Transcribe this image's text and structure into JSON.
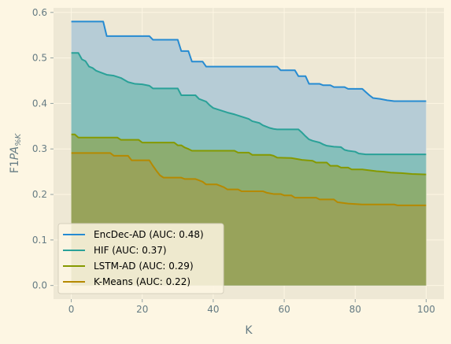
{
  "chart_data": {
    "type": "area",
    "xlabel": "K",
    "ylabel": "F1PA%K",
    "xlim": [
      -5,
      105
    ],
    "ylim": [
      -0.03,
      0.61
    ],
    "xticks": [
      0,
      20,
      40,
      60,
      80,
      100
    ],
    "xtick_labels": [
      "0",
      "20",
      "40",
      "60",
      "80",
      "100"
    ],
    "yticks": [
      0.0,
      0.1,
      0.2,
      0.3,
      0.4,
      0.5,
      0.6
    ],
    "ytick_labels": [
      "0.0",
      "0.1",
      "0.2",
      "0.3",
      "0.4",
      "0.5",
      "0.6"
    ],
    "grid": true,
    "legend_position": "lower-left",
    "series": [
      {
        "name": "EncDec-AD (AUC: 0.48)",
        "color": "#268bd2",
        "fill": "#b6ccd6",
        "points": [
          [
            0,
            0.58
          ],
          [
            9,
            0.58
          ],
          [
            10,
            0.548
          ],
          [
            22,
            0.548
          ],
          [
            23,
            0.54
          ],
          [
            30,
            0.54
          ],
          [
            31,
            0.515
          ],
          [
            33,
            0.515
          ],
          [
            34,
            0.492
          ],
          [
            37,
            0.492
          ],
          [
            38,
            0.481
          ],
          [
            58,
            0.481
          ],
          [
            59,
            0.473
          ],
          [
            63,
            0.473
          ],
          [
            64,
            0.46
          ],
          [
            66,
            0.46
          ],
          [
            67,
            0.443
          ],
          [
            70,
            0.443
          ],
          [
            71,
            0.44
          ],
          [
            73,
            0.44
          ],
          [
            74,
            0.436
          ],
          [
            77,
            0.436
          ],
          [
            78,
            0.432
          ],
          [
            82,
            0.432
          ],
          [
            83,
            0.425
          ],
          [
            84,
            0.418
          ],
          [
            85,
            0.412
          ],
          [
            87,
            0.41
          ],
          [
            89,
            0.407
          ],
          [
            91,
            0.405
          ],
          [
            100,
            0.405
          ]
        ]
      },
      {
        "name": "HIF (AUC: 0.37)",
        "color": "#2aa198",
        "fill": "#86bfbb",
        "points": [
          [
            0,
            0.511
          ],
          [
            2,
            0.511
          ],
          [
            3,
            0.497
          ],
          [
            4,
            0.493
          ],
          [
            5,
            0.481
          ],
          [
            6,
            0.478
          ],
          [
            7,
            0.472
          ],
          [
            8,
            0.469
          ],
          [
            10,
            0.463
          ],
          [
            12,
            0.461
          ],
          [
            14,
            0.456
          ],
          [
            16,
            0.447
          ],
          [
            18,
            0.443
          ],
          [
            20,
            0.442
          ],
          [
            22,
            0.439
          ],
          [
            23,
            0.433
          ],
          [
            30,
            0.433
          ],
          [
            31,
            0.418
          ],
          [
            35,
            0.418
          ],
          [
            36,
            0.41
          ],
          [
            38,
            0.404
          ],
          [
            39,
            0.396
          ],
          [
            40,
            0.39
          ],
          [
            42,
            0.385
          ],
          [
            44,
            0.38
          ],
          [
            46,
            0.376
          ],
          [
            48,
            0.371
          ],
          [
            50,
            0.366
          ],
          [
            51,
            0.361
          ],
          [
            53,
            0.357
          ],
          [
            54,
            0.352
          ],
          [
            55,
            0.349
          ],
          [
            56,
            0.346
          ],
          [
            57,
            0.344
          ],
          [
            58,
            0.343
          ],
          [
            64,
            0.343
          ],
          [
            65,
            0.336
          ],
          [
            66,
            0.328
          ],
          [
            67,
            0.321
          ],
          [
            68,
            0.318
          ],
          [
            70,
            0.314
          ],
          [
            71,
            0.31
          ],
          [
            72,
            0.307
          ],
          [
            74,
            0.305
          ],
          [
            76,
            0.304
          ],
          [
            77,
            0.298
          ],
          [
            78,
            0.296
          ],
          [
            80,
            0.294
          ],
          [
            81,
            0.29
          ],
          [
            83,
            0.288
          ],
          [
            100,
            0.288
          ]
        ]
      },
      {
        "name": "LSTM-AD (AUC: 0.29)",
        "color": "#859900",
        "fill": "#8cad71",
        "points": [
          [
            0,
            0.332
          ],
          [
            1,
            0.332
          ],
          [
            2,
            0.325
          ],
          [
            13,
            0.325
          ],
          [
            14,
            0.32
          ],
          [
            19,
            0.32
          ],
          [
            20,
            0.314
          ],
          [
            29,
            0.314
          ],
          [
            30,
            0.308
          ],
          [
            31,
            0.308
          ],
          [
            32,
            0.303
          ],
          [
            33,
            0.3
          ],
          [
            34,
            0.296
          ],
          [
            46,
            0.296
          ],
          [
            47,
            0.292
          ],
          [
            50,
            0.292
          ],
          [
            51,
            0.287
          ],
          [
            56,
            0.287
          ],
          [
            57,
            0.285
          ],
          [
            58,
            0.281
          ],
          [
            62,
            0.28
          ],
          [
            65,
            0.276
          ],
          [
            68,
            0.274
          ],
          [
            69,
            0.27
          ],
          [
            72,
            0.27
          ],
          [
            73,
            0.263
          ],
          [
            75,
            0.263
          ],
          [
            76,
            0.259
          ],
          [
            78,
            0.259
          ],
          [
            79,
            0.255
          ],
          [
            82,
            0.255
          ],
          [
            84,
            0.253
          ],
          [
            86,
            0.251
          ],
          [
            88,
            0.25
          ],
          [
            90,
            0.248
          ],
          [
            93,
            0.247
          ],
          [
            96,
            0.245
          ],
          [
            100,
            0.244
          ]
        ]
      },
      {
        "name": "K-Means (AUC: 0.22)",
        "color": "#b58900",
        "fill": "#98a35b",
        "points": [
          [
            0,
            0.291
          ],
          [
            11,
            0.291
          ],
          [
            12,
            0.285
          ],
          [
            16,
            0.285
          ],
          [
            17,
            0.275
          ],
          [
            22,
            0.275
          ],
          [
            23,
            0.263
          ],
          [
            24,
            0.252
          ],
          [
            25,
            0.242
          ],
          [
            26,
            0.237
          ],
          [
            31,
            0.237
          ],
          [
            32,
            0.234
          ],
          [
            35,
            0.234
          ],
          [
            36,
            0.231
          ],
          [
            37,
            0.228
          ],
          [
            38,
            0.222
          ],
          [
            41,
            0.222
          ],
          [
            42,
            0.219
          ],
          [
            43,
            0.216
          ],
          [
            44,
            0.211
          ],
          [
            47,
            0.211
          ],
          [
            48,
            0.207
          ],
          [
            54,
            0.207
          ],
          [
            55,
            0.204
          ],
          [
            57,
            0.201
          ],
          [
            59,
            0.201
          ],
          [
            60,
            0.198
          ],
          [
            62,
            0.198
          ],
          [
            63,
            0.193
          ],
          [
            69,
            0.193
          ],
          [
            70,
            0.189
          ],
          [
            74,
            0.189
          ],
          [
            75,
            0.183
          ],
          [
            78,
            0.18
          ],
          [
            82,
            0.178
          ],
          [
            91,
            0.178
          ],
          [
            92,
            0.176
          ],
          [
            100,
            0.176
          ]
        ]
      }
    ]
  }
}
